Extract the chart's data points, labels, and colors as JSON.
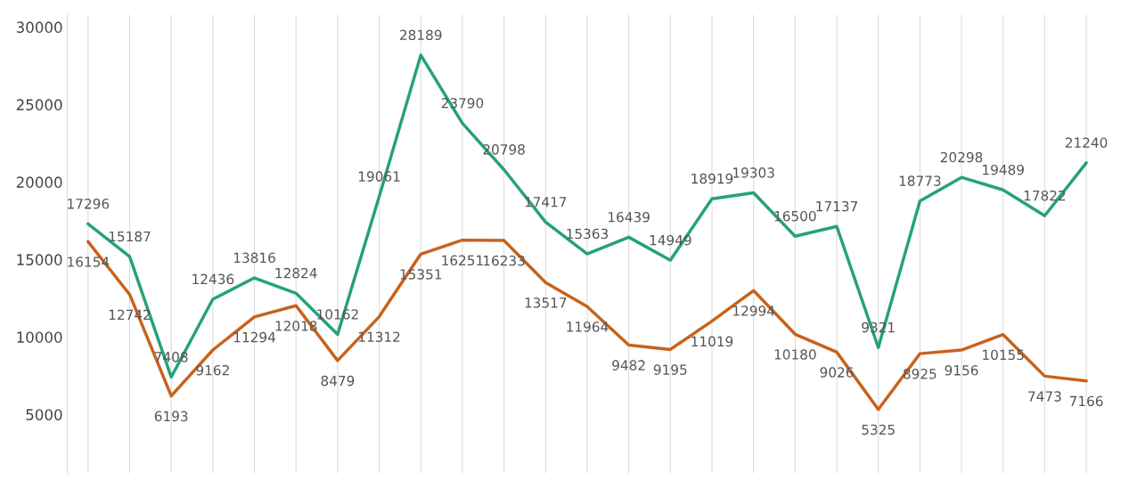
{
  "chart_data": {
    "type": "line",
    "categories": [
      null,
      null,
      null,
      null,
      null,
      null,
      null,
      null,
      null,
      null,
      null,
      null,
      null,
      null,
      null,
      null,
      null,
      null,
      null,
      null,
      null,
      null,
      null,
      null,
      null
    ],
    "series": [
      {
        "color": "#26a17b",
        "values": [
          17296,
          15187,
          7408,
          12436,
          13816,
          12824,
          10162,
          19061,
          28189,
          23790,
          20798,
          17417,
          15363,
          16439,
          14949,
          18919,
          19303,
          16500,
          17137,
          9321,
          18773,
          20298,
          19489,
          17822,
          21240
        ]
      },
      {
        "color": "#c8621c",
        "values": [
          16154,
          12742,
          6193,
          9162,
          11294,
          12018,
          8479,
          11312,
          15351,
          16251,
          16233,
          13517,
          11964,
          9482,
          9195,
          11019,
          12994,
          10180,
          9026,
          5325,
          8925,
          9156,
          10155,
          7473,
          7166
        ]
      }
    ],
    "ylim": [
      1200,
      30800
    ],
    "yticks": [
      5000,
      10000,
      15000,
      20000,
      25000,
      30000
    ],
    "grid": "x",
    "data_labels": true,
    "marker": "none",
    "line_style": "solid"
  }
}
